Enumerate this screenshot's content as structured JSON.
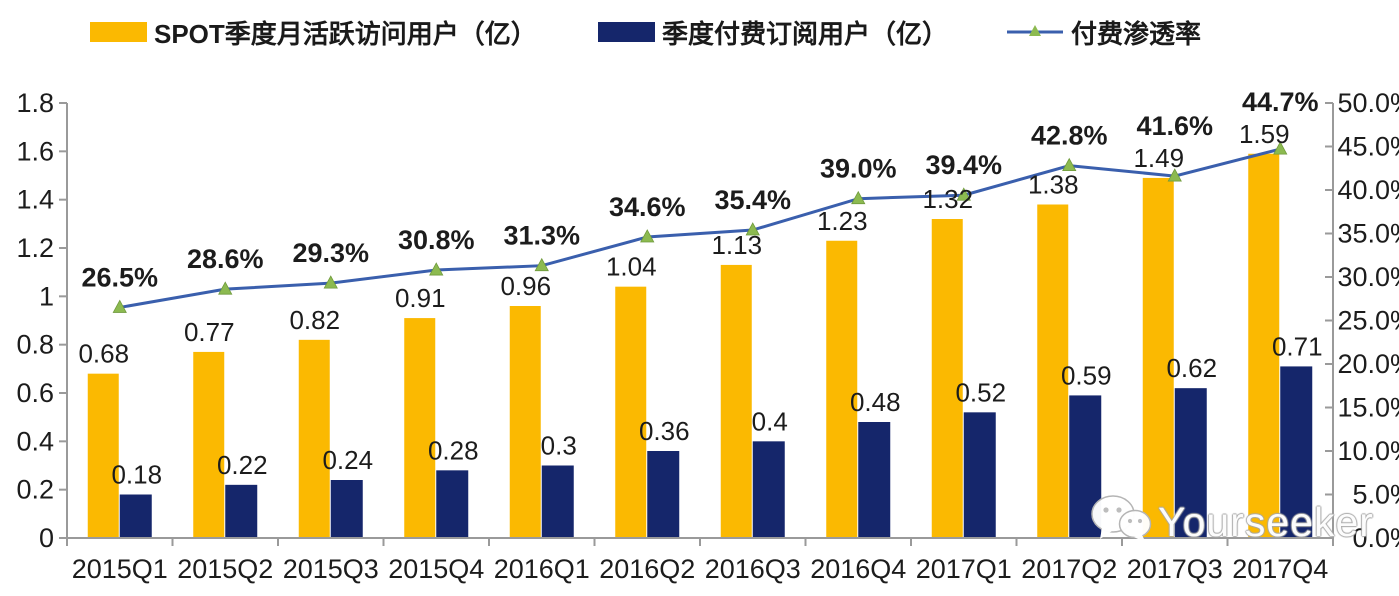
{
  "legend": {
    "mau": {
      "label": "SPOT季度月活跃访问用户（亿）",
      "color": "#FBB901"
    },
    "subs": {
      "label": "季度付费订阅用户（亿）",
      "color": "#15266B"
    },
    "penetration": {
      "label": "付费渗透率",
      "line_color": "#3A5FAD",
      "marker_color": "#8CBA50"
    }
  },
  "watermark": {
    "text": "Yourseeker",
    "icon": "wechat-icon"
  },
  "chart_data": {
    "type": "bar+line combo",
    "categories": [
      "2015Q1",
      "2015Q2",
      "2015Q3",
      "2015Q4",
      "2016Q1",
      "2016Q2",
      "2016Q3",
      "2016Q4",
      "2017Q1",
      "2017Q2",
      "2017Q3",
      "2017Q4"
    ],
    "series": [
      {
        "name": "SPOT季度月活跃访问用户（亿）",
        "type": "bar",
        "axis": "left",
        "color": "#FBB901",
        "values": [
          0.68,
          0.77,
          0.82,
          0.91,
          0.96,
          1.04,
          1.13,
          1.23,
          1.32,
          1.38,
          1.49,
          1.59
        ],
        "labels": [
          "0.68",
          "0.77",
          "0.82",
          "0.91",
          "0.96",
          "1.04",
          "1.13",
          "1.23",
          "1.32",
          "1.38",
          "1.49",
          "1.59"
        ]
      },
      {
        "name": "季度付费订阅用户（亿）",
        "type": "bar",
        "axis": "left",
        "color": "#15266B",
        "values": [
          0.18,
          0.22,
          0.24,
          0.28,
          0.3,
          0.36,
          0.4,
          0.48,
          0.52,
          0.59,
          0.62,
          0.71
        ],
        "labels": [
          "0.18",
          "0.22",
          "0.24",
          "0.28",
          "0.3",
          "0.36",
          "0.4",
          "0.48",
          "0.52",
          "0.59",
          "0.62",
          "0.71"
        ]
      },
      {
        "name": "付费渗透率",
        "type": "line",
        "axis": "right",
        "color": "#3A5FAD",
        "marker": "triangle",
        "marker_color": "#8CBA50",
        "values": [
          26.5,
          28.6,
          29.3,
          30.8,
          31.3,
          34.6,
          35.4,
          39.0,
          39.4,
          42.8,
          41.6,
          44.7
        ],
        "labels": [
          "26.5%",
          "28.6%",
          "29.3%",
          "30.8%",
          "31.3%",
          "34.6%",
          "35.4%",
          "39.0%",
          "39.4%",
          "42.8%",
          "41.6%",
          "44.7%"
        ]
      }
    ],
    "left_axis": {
      "min": 0,
      "max": 1.8,
      "step": 0.2,
      "ticks": [
        "0",
        "0.2",
        "0.4",
        "0.6",
        "0.8",
        "1",
        "1.2",
        "1.4",
        "1.6",
        "1.8"
      ]
    },
    "right_axis": {
      "min": 0,
      "max": 50,
      "step": 5,
      "ticks": [
        "0.0%",
        "5.0%",
        "10.0%",
        "15.0%",
        "20.0%",
        "25.0%",
        "30.0%",
        "35.0%",
        "40.0%",
        "45.0%",
        "50.0%"
      ]
    },
    "grid": "off",
    "legend_position": "top",
    "axis_color": "#9a9a9a",
    "text_color": "#1c1c1c"
  }
}
